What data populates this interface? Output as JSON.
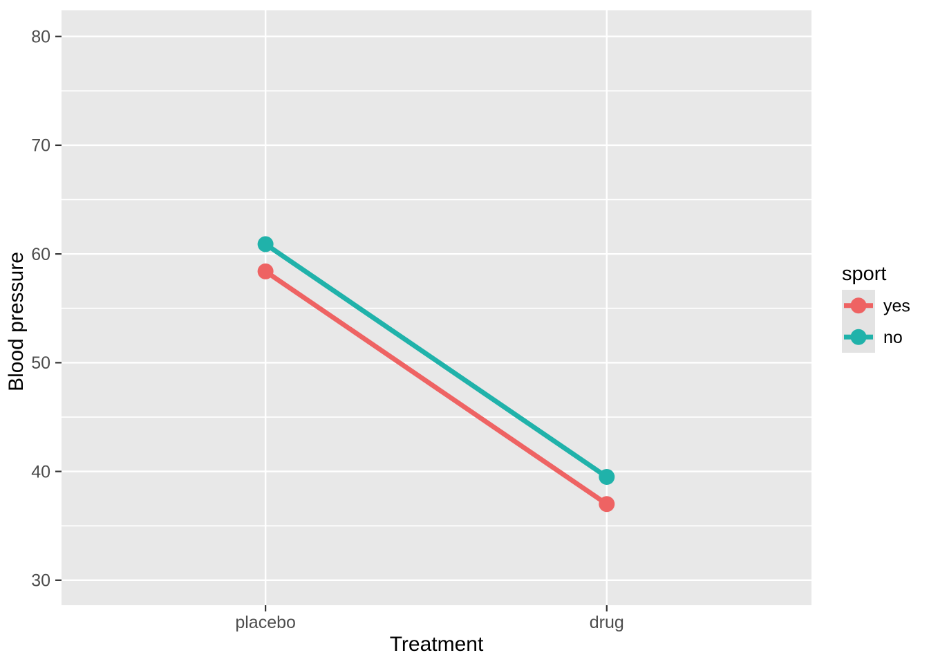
{
  "chart_data": {
    "type": "line",
    "title": "",
    "xlabel": "Treatment",
    "ylabel": "Blood pressure",
    "categories": [
      "placebo",
      "drug"
    ],
    "series": [
      {
        "name": "yes",
        "color": "#EE6363",
        "values": [
          58.4,
          37.0
        ]
      },
      {
        "name": "no",
        "color": "#20B2AA",
        "values": [
          60.9,
          39.5
        ]
      }
    ],
    "legend": {
      "title": "sport",
      "position": "right"
    },
    "x_axis": {
      "positions": [
        0.272,
        0.727
      ]
    },
    "y_axis": {
      "ticks": [
        30,
        40,
        50,
        60,
        70,
        80
      ],
      "minor_ticks": [
        35,
        45,
        55,
        65,
        75
      ],
      "range": [
        27.7,
        82.4
      ]
    },
    "grid": true,
    "style": {
      "panel_bg": "#E8E8E8",
      "grid_color": "#FFFFFF",
      "legend_key_bg": "#E3E3E3",
      "tick_label_color": "#4D4D4D",
      "axis_title_color": "#000000",
      "legend_text_color": "#000000",
      "tick_mark_color": "#333333"
    }
  }
}
